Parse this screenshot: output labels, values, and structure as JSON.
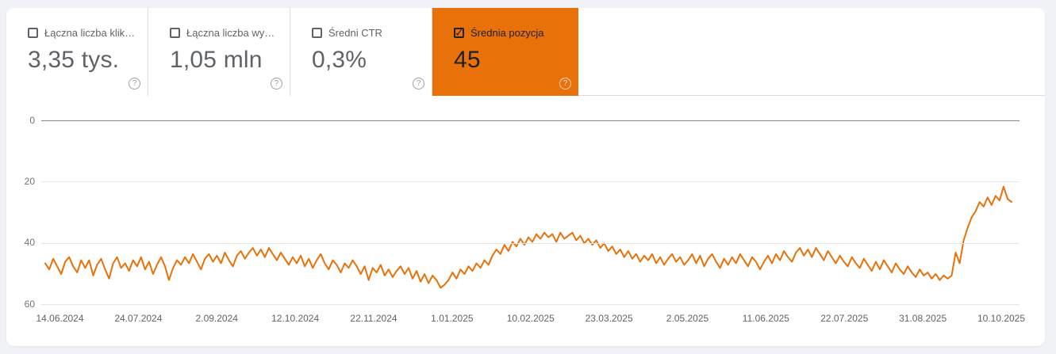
{
  "page": {
    "background": "#F0F2F5",
    "panel_background": "#FFFFFF"
  },
  "colors": {
    "accent_orange": "#E8710A",
    "card_text": "#5F6368",
    "selected_text": "#202124",
    "gridline": "#E4E7EA",
    "zero_gridline": "#80868B",
    "axis_label": "#6F7377"
  },
  "metric_cards": [
    {
      "label": "Łączna liczba klik…",
      "value": "3,35 tys.",
      "checked": false,
      "selected": false
    },
    {
      "label": "Łączna liczba wy…",
      "value": "1,05 mln",
      "checked": false,
      "selected": false
    },
    {
      "label": "Średni CTR",
      "value": "0,3%",
      "checked": false,
      "selected": false
    },
    {
      "label": "Średnia pozycja",
      "value": "45",
      "checked": true,
      "selected": true
    }
  ],
  "help_icon_glyph": "?",
  "chart_data": {
    "type": "line",
    "title": "Średnia pozycja",
    "xlabel": "",
    "ylabel": "",
    "y_ticks": [
      0,
      20,
      40,
      60
    ],
    "y_axis_inverted": true,
    "ylim": [
      0,
      60
    ],
    "grid": true,
    "legend_position": "none",
    "x_tick_labels": [
      "14.06.2024",
      "24.07.2024",
      "2.09.2024",
      "12.10.2024",
      "22.11.2024",
      "1.01.2025",
      "10.02.2025",
      "23.03.2025",
      "2.05.2025",
      "11.06.2025",
      "22.07.2025",
      "31.08.2025",
      "10.10.2025"
    ],
    "x_range": [
      "14.06.2024",
      "10.10.2025"
    ],
    "sampling": "approx. every 2 days",
    "series": [
      {
        "name": "Średnia pozycja",
        "color": "#E8710A",
        "values": [
          46.5,
          48.5,
          45,
          47.5,
          50,
          46,
          44.5,
          47.5,
          49.5,
          45.5,
          48,
          45.5,
          50.5,
          47,
          45,
          48.5,
          51.5,
          46.5,
          44.5,
          48,
          46.5,
          49,
          45.5,
          47.5,
          44.5,
          48.5,
          46,
          50,
          47,
          44.5,
          47.5,
          52,
          48,
          45.5,
          47,
          44.5,
          46.5,
          43.5,
          46,
          48.5,
          45,
          43.5,
          46,
          44,
          46.5,
          43,
          45.5,
          47.5,
          44,
          42.5,
          45,
          43,
          41.5,
          44,
          42,
          44.5,
          41.5,
          43.5,
          45.5,
          43,
          45,
          47,
          44.5,
          46.5,
          44,
          47.5,
          45,
          48,
          45.5,
          43.5,
          46.5,
          48.5,
          45.5,
          47,
          49.5,
          46.5,
          48,
          45.5,
          47.5,
          50,
          47.5,
          52,
          48,
          49.5,
          47,
          50.5,
          48.5,
          51,
          49,
          47.5,
          50,
          48,
          51.5,
          49,
          52.5,
          50,
          53,
          50.5,
          52,
          54.5,
          53.5,
          52,
          49.5,
          51.5,
          48.5,
          50,
          47.5,
          49,
          46.5,
          48,
          45.5,
          47,
          44,
          42,
          43.5,
          40.5,
          42.5,
          39.5,
          41,
          38.5,
          40.5,
          38,
          39.5,
          37,
          38.5,
          36.5,
          38,
          37,
          39.5,
          36.5,
          38.5,
          37.5,
          36.5,
          39,
          37.5,
          40,
          38.5,
          40.5,
          39,
          41.5,
          40,
          42.5,
          41,
          43.5,
          42,
          44.5,
          42.5,
          45,
          43.5,
          46,
          44,
          45.5,
          43.5,
          46.5,
          44.5,
          47,
          45,
          43.5,
          46,
          44.5,
          47,
          45.5,
          43.5,
          46.5,
          44,
          47.5,
          45,
          43.5,
          46,
          48,
          45,
          47,
          44.5,
          46.5,
          43.5,
          45.5,
          47.5,
          44.5,
          46,
          48.5,
          46,
          44,
          46.5,
          43.5,
          45.5,
          42.5,
          44.5,
          46,
          43,
          41.5,
          44,
          42,
          44.5,
          41.5,
          43.5,
          45.5,
          42.5,
          44.5,
          46.5,
          44,
          46,
          47.5,
          44.5,
          46.5,
          48,
          45,
          47,
          49,
          46,
          48.5,
          45.5,
          47.5,
          49.5,
          46.5,
          48.5,
          50,
          47.5,
          49.5,
          51,
          48.5,
          50.5,
          49.5,
          51.5,
          50,
          52,
          50.5,
          51.5,
          50.5,
          43,
          46.5,
          39,
          35,
          31.5,
          29.5,
          26.5,
          28,
          25,
          27.5,
          24.5,
          26,
          21.5,
          25.5,
          26.5
        ]
      }
    ]
  }
}
